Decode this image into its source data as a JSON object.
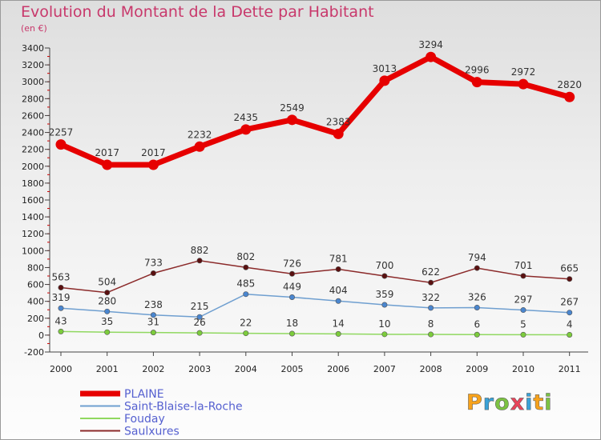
{
  "title": "Evolution du Montant de la Dette par Habitant",
  "subtitle": "(en €)",
  "logo": {
    "text": "Proxiti",
    "colors": [
      "#f7a21b",
      "#3aa2d8",
      "#7cc242",
      "#e8455a",
      "#3aa2d8",
      "#f7a21b",
      "#7cc242"
    ]
  },
  "chart_data": {
    "type": "line",
    "title": "Evolution du Montant de la Dette par Habitant",
    "subtitle": "(en €)",
    "x": [
      "2000",
      "2001",
      "2002",
      "2003",
      "2004",
      "2005",
      "2006",
      "2007",
      "2008",
      "2009",
      "2010",
      "2011"
    ],
    "ylim": [
      -200,
      3400
    ],
    "yticks": [
      -200,
      0,
      200,
      400,
      600,
      800,
      1000,
      1200,
      1400,
      1600,
      1800,
      2000,
      2200,
      2400,
      2600,
      2800,
      3000,
      3200,
      3400
    ],
    "legend_position": "bottom-left",
    "series": [
      {
        "name": "PLAINE",
        "color": "#e60000",
        "marker_color": "#e60000",
        "values": [
          2257,
          2017,
          2017,
          2232,
          2435,
          2549,
          2383,
          3013,
          3294,
          2996,
          2972,
          2820
        ]
      },
      {
        "name": "Saint-Blaise-la-Roche",
        "color": "#6f9fd0",
        "marker_color": "#4a86cf",
        "values": [
          319,
          280,
          238,
          215,
          485,
          449,
          404,
          359,
          322,
          326,
          297,
          267
        ]
      },
      {
        "name": "Fouday",
        "color": "#90d860",
        "marker_color": "#7ccc3c",
        "values": [
          43,
          35,
          31,
          26,
          22,
          18,
          14,
          10,
          8,
          6,
          5,
          4
        ]
      },
      {
        "name": "Saulxures",
        "color": "#8b2a2a",
        "marker_color": "#5a1010",
        "values": [
          563,
          504,
          733,
          882,
          802,
          726,
          781,
          700,
          622,
          794,
          701,
          665
        ]
      }
    ]
  }
}
